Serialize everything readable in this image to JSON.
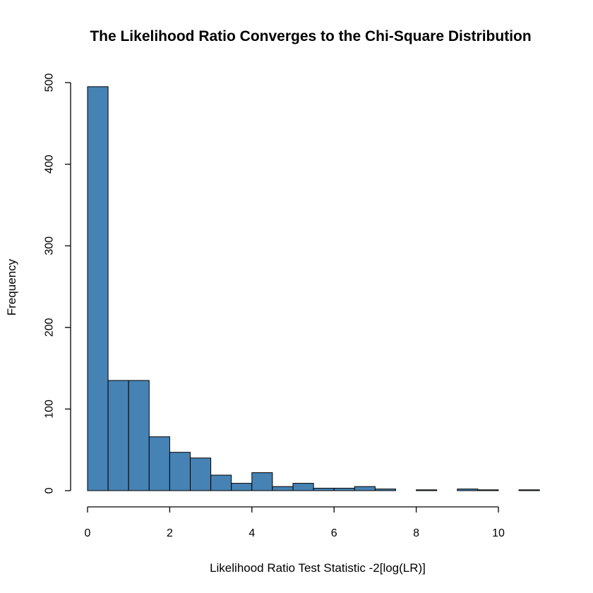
{
  "chart_data": {
    "type": "bar",
    "title": "The Likelihood Ratio Converges to the Chi-Square Distribution",
    "xlabel": "Likelihood Ratio Test Statistic -2[log(LR)]",
    "ylabel": "Frequency",
    "bar_color": "#4682b4",
    "bin_width": 0.5,
    "bin_starts": [
      0,
      0.5,
      1,
      1.5,
      2,
      2.5,
      3,
      3.5,
      4,
      4.5,
      5,
      5.5,
      6,
      6.5,
      7,
      7.5,
      8,
      8.5,
      9,
      9.5,
      10,
      10.5
    ],
    "values": [
      495,
      135,
      135,
      66,
      47,
      40,
      19,
      9,
      22,
      5,
      9,
      3,
      3,
      5,
      2,
      0,
      1,
      0,
      2,
      1,
      0,
      1
    ],
    "xlim": [
      0,
      11
    ],
    "ylim": [
      0,
      500
    ],
    "x_ticks": [
      0,
      2,
      4,
      6,
      8,
      10
    ],
    "y_ticks": [
      0,
      100,
      200,
      300,
      400,
      500
    ],
    "grid": false,
    "legend": "none"
  }
}
